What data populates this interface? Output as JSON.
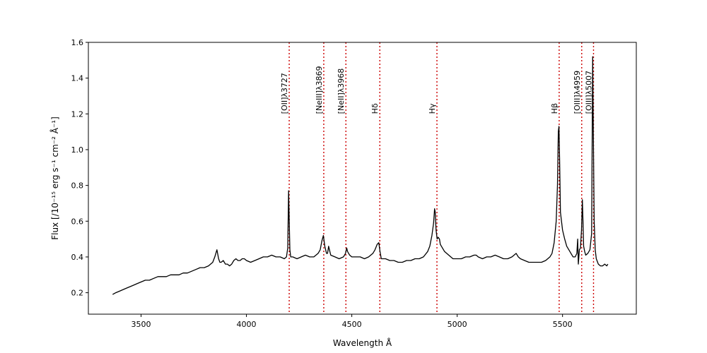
{
  "chart_data": {
    "type": "line",
    "title": "",
    "xlabel": "Wavelength Å",
    "ylabel": "Flux  [/10⁻¹⁵ erg s⁻¹ cm⁻² Å⁻¹]",
    "xlim": [
      3250,
      5850
    ],
    "ylim": [
      0.08,
      1.6
    ],
    "xticks": [
      3500,
      4000,
      4500,
      5000,
      5500
    ],
    "yticks": [
      0.2,
      0.4,
      0.6,
      0.8,
      1.0,
      1.2,
      1.4,
      1.6
    ],
    "grid": false,
    "legend": "none",
    "series": [
      {
        "color": "#000000",
        "x": [
          3365,
          3380,
          3400,
          3420,
          3440,
          3460,
          3480,
          3500,
          3520,
          3540,
          3560,
          3580,
          3600,
          3620,
          3640,
          3660,
          3680,
          3700,
          3720,
          3740,
          3760,
          3780,
          3800,
          3820,
          3840,
          3850,
          3860,
          3868,
          3874,
          3880,
          3890,
          3900,
          3910,
          3920,
          3930,
          3940,
          3950,
          3960,
          3970,
          3980,
          3990,
          4000,
          4020,
          4040,
          4060,
          4080,
          4100,
          4120,
          4140,
          4160,
          4180,
          4190,
          4196,
          4200,
          4203,
          4206,
          4210,
          4220,
          4240,
          4260,
          4280,
          4300,
          4320,
          4340,
          4350,
          4358,
          4365,
          4372,
          4380,
          4385,
          4390,
          4400,
          4420,
          4440,
          4460,
          4470,
          4476,
          4480,
          4490,
          4500,
          4520,
          4540,
          4560,
          4580,
          4600,
          4610,
          4620,
          4628,
          4634,
          4640,
          4660,
          4680,
          4700,
          4720,
          4740,
          4760,
          4780,
          4800,
          4820,
          4840,
          4860,
          4870,
          4880,
          4888,
          4893,
          4896,
          4900,
          4905,
          4910,
          4916,
          4920,
          4940,
          4960,
          4980,
          5000,
          5020,
          5040,
          5060,
          5080,
          5090,
          5100,
          5120,
          5140,
          5160,
          5180,
          5200,
          5220,
          5240,
          5260,
          5280,
          5290,
          5300,
          5320,
          5340,
          5360,
          5380,
          5400,
          5420,
          5440,
          5450,
          5460,
          5470,
          5476,
          5480,
          5483,
          5486,
          5490,
          5500,
          5510,
          5520,
          5530,
          5540,
          5550,
          5560,
          5568,
          5572,
          5575,
          5580,
          5585,
          5590,
          5594,
          5597,
          5600,
          5605,
          5610,
          5620,
          5630,
          5638,
          5643,
          5646,
          5650,
          5655,
          5660,
          5670,
          5680,
          5690,
          5700,
          5710,
          5715
        ],
        "y": [
          0.19,
          0.2,
          0.21,
          0.22,
          0.23,
          0.24,
          0.25,
          0.26,
          0.27,
          0.27,
          0.28,
          0.29,
          0.29,
          0.29,
          0.3,
          0.3,
          0.3,
          0.31,
          0.31,
          0.32,
          0.33,
          0.34,
          0.34,
          0.35,
          0.37,
          0.4,
          0.44,
          0.39,
          0.37,
          0.37,
          0.38,
          0.36,
          0.36,
          0.35,
          0.36,
          0.38,
          0.39,
          0.38,
          0.38,
          0.39,
          0.39,
          0.38,
          0.37,
          0.38,
          0.39,
          0.4,
          0.4,
          0.41,
          0.4,
          0.4,
          0.39,
          0.4,
          0.45,
          0.77,
          0.6,
          0.44,
          0.4,
          0.4,
          0.39,
          0.4,
          0.41,
          0.4,
          0.4,
          0.42,
          0.44,
          0.49,
          0.52,
          0.46,
          0.42,
          0.42,
          0.46,
          0.41,
          0.4,
          0.39,
          0.4,
          0.42,
          0.45,
          0.43,
          0.41,
          0.4,
          0.4,
          0.4,
          0.39,
          0.4,
          0.42,
          0.44,
          0.47,
          0.48,
          0.43,
          0.39,
          0.39,
          0.38,
          0.38,
          0.37,
          0.37,
          0.38,
          0.38,
          0.39,
          0.39,
          0.4,
          0.43,
          0.46,
          0.52,
          0.59,
          0.67,
          0.65,
          0.55,
          0.5,
          0.51,
          0.5,
          0.47,
          0.43,
          0.41,
          0.39,
          0.39,
          0.39,
          0.4,
          0.4,
          0.41,
          0.41,
          0.4,
          0.39,
          0.4,
          0.4,
          0.41,
          0.4,
          0.39,
          0.39,
          0.4,
          0.42,
          0.4,
          0.39,
          0.38,
          0.37,
          0.37,
          0.37,
          0.37,
          0.38,
          0.4,
          0.42,
          0.48,
          0.6,
          0.8,
          1.1,
          1.13,
          0.95,
          0.65,
          0.55,
          0.5,
          0.46,
          0.44,
          0.42,
          0.4,
          0.4,
          0.42,
          0.5,
          0.36,
          0.44,
          0.45,
          0.55,
          0.72,
          0.6,
          0.46,
          0.43,
          0.41,
          0.42,
          0.44,
          0.53,
          1.52,
          1.1,
          0.6,
          0.44,
          0.39,
          0.36,
          0.35,
          0.35,
          0.36,
          0.35,
          0.36
        ]
      }
    ],
    "lines": [
      {
        "label": "[OII]λ3727",
        "x": 4203
      },
      {
        "label": "[NeIII]λ3869",
        "x": 4367
      },
      {
        "label": "[NeII]λ3968",
        "x": 4472
      },
      {
        "label": "Hδ",
        "x": 4633
      },
      {
        "label": "Hγ",
        "x": 4904
      },
      {
        "label": "Hβ",
        "x": 5484
      },
      {
        "label": "[OIII]λ4959",
        "x": 5591
      },
      {
        "label": "[OIII]λ5007",
        "x": 5647
      }
    ],
    "lines_color": "#cc0000",
    "line_label_y": 1.2
  }
}
